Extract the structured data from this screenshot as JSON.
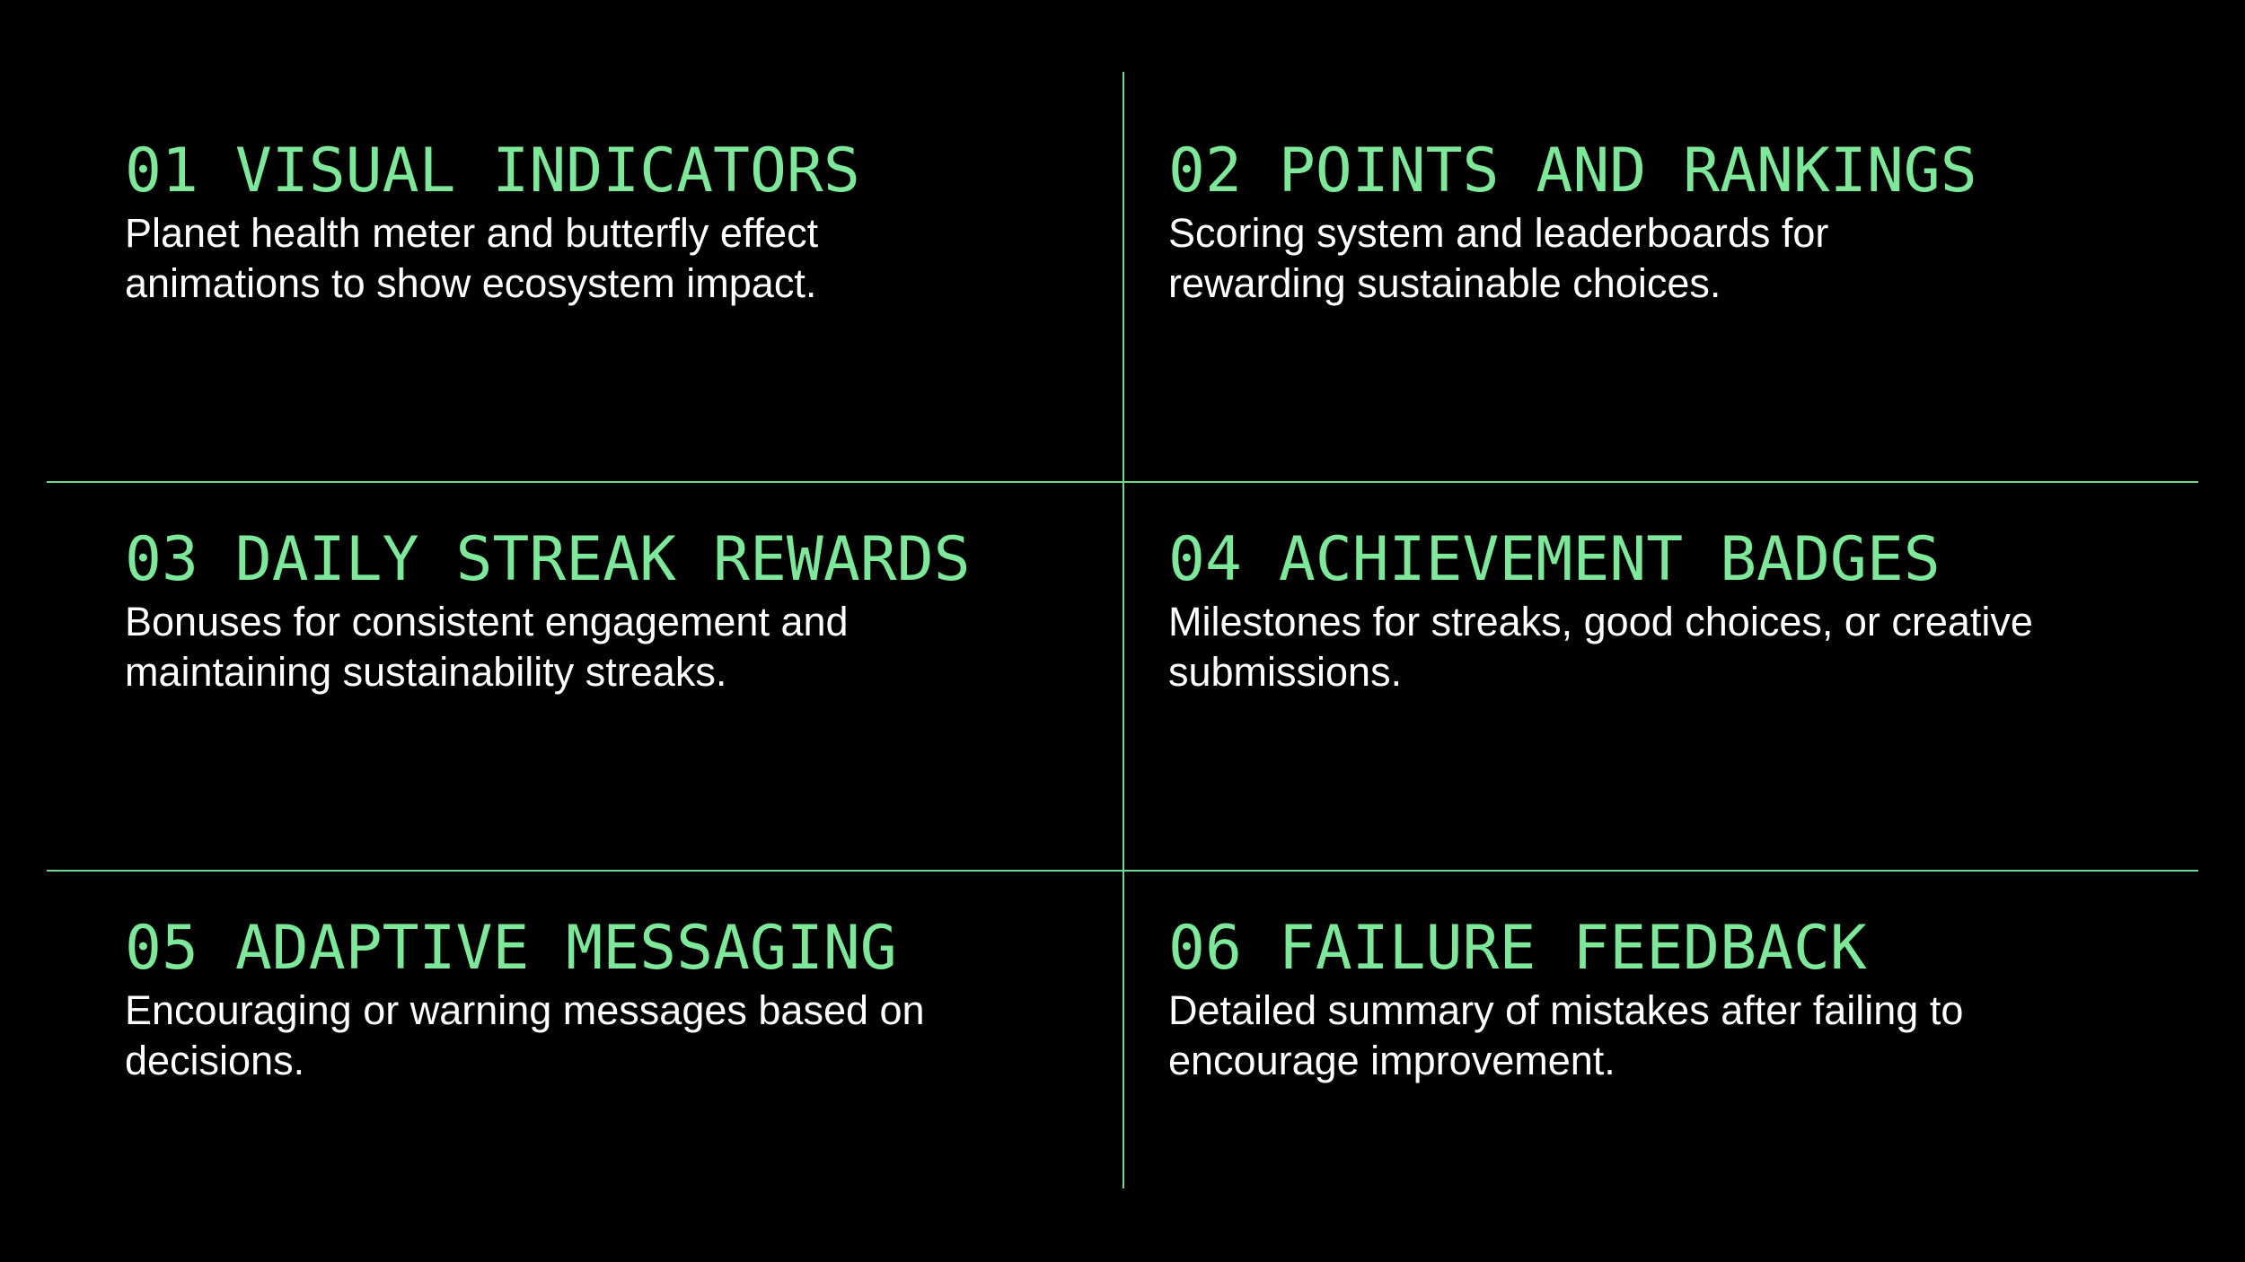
{
  "items": [
    {
      "title": "01 VISUAL INDICATORS",
      "desc_line1": "Planet health meter and butterfly effect",
      "desc_line2": "animations to show ecosystem impact."
    },
    {
      "title": "02 POINTS AND RANKINGS",
      "desc_line1": "Scoring system and leaderboards for",
      "desc_line2": "rewarding sustainable choices."
    },
    {
      "title": "03 DAILY STREAK REWARDS",
      "desc_line1": "Bonuses for consistent engagement and",
      "desc_line2": "maintaining sustainability streaks."
    },
    {
      "title": "04 ACHIEVEMENT BADGES",
      "desc_line1": "Milestones for streaks, good choices, or creative",
      "desc_line2": "submissions."
    },
    {
      "title": "05 ADAPTIVE MESSAGING",
      "desc_line1": "Encouraging or warning messages based on",
      "desc_line2": "decisions."
    },
    {
      "title": "06 FAILURE FEEDBACK",
      "desc_line1": "Detailed summary of mistakes after failing to",
      "desc_line2": "encourage improvement."
    }
  ],
  "colors": {
    "background": "#000000",
    "accent": "#7ee89a",
    "divider": "#6fd88c",
    "text": "#ffffff"
  }
}
